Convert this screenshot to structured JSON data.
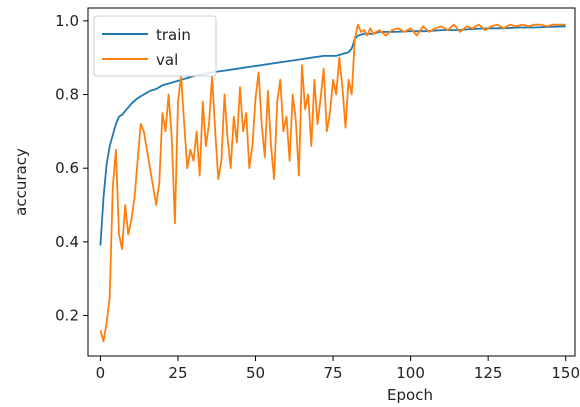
{
  "chart_data": {
    "type": "line",
    "xlabel": "Epoch",
    "ylabel": "accuracy",
    "xlim": [
      -4,
      153
    ],
    "ylim": [
      0.09,
      1.035
    ],
    "xticks": [
      0,
      25,
      50,
      75,
      100,
      125,
      150
    ],
    "yticks": [
      0.2,
      0.4,
      0.6,
      0.8,
      1.0
    ],
    "xtick_labels": [
      "0",
      "25",
      "50",
      "75",
      "100",
      "125",
      "150"
    ],
    "ytick_labels": [
      "0.2",
      "0.4",
      "0.6",
      "0.8",
      "1.0"
    ],
    "grid": false,
    "legend": "top-left",
    "series": [
      {
        "name": "train",
        "color": "#1f77b4",
        "x": [
          0,
          1,
          2,
          3,
          4,
          5,
          6,
          7,
          8,
          9,
          10,
          12,
          14,
          16,
          18,
          20,
          22,
          24,
          26,
          28,
          30,
          33,
          36,
          40,
          44,
          48,
          52,
          56,
          60,
          64,
          68,
          72,
          76,
          78,
          80,
          81,
          82,
          83,
          85,
          88,
          90,
          95,
          100,
          105,
          110,
          115,
          120,
          125,
          130,
          135,
          140,
          145,
          150
        ],
        "y": [
          0.39,
          0.52,
          0.61,
          0.66,
          0.69,
          0.72,
          0.74,
          0.745,
          0.755,
          0.765,
          0.775,
          0.79,
          0.8,
          0.81,
          0.815,
          0.825,
          0.83,
          0.835,
          0.84,
          0.845,
          0.85,
          0.855,
          0.86,
          0.865,
          0.87,
          0.875,
          0.88,
          0.885,
          0.89,
          0.895,
          0.9,
          0.905,
          0.905,
          0.91,
          0.915,
          0.925,
          0.95,
          0.96,
          0.965,
          0.965,
          0.97,
          0.97,
          0.972,
          0.972,
          0.975,
          0.975,
          0.978,
          0.98,
          0.98,
          0.982,
          0.982,
          0.984,
          0.985
        ]
      },
      {
        "name": "val",
        "color": "#ff7f0e",
        "x": [
          0,
          1,
          2,
          3,
          4,
          5,
          6,
          7,
          8,
          9,
          10,
          11,
          12,
          13,
          14,
          15,
          16,
          17,
          18,
          19,
          20,
          21,
          22,
          23,
          24,
          25,
          26,
          27,
          28,
          29,
          30,
          31,
          32,
          33,
          34,
          35,
          36,
          37,
          38,
          39,
          40,
          41,
          42,
          43,
          44,
          45,
          46,
          47,
          48,
          49,
          50,
          51,
          52,
          53,
          54,
          55,
          56,
          57,
          58,
          59,
          60,
          61,
          62,
          63,
          64,
          65,
          66,
          67,
          68,
          69,
          70,
          71,
          72,
          73,
          74,
          75,
          76,
          77,
          78,
          79,
          80,
          81,
          82,
          83,
          84,
          85,
          86,
          87,
          88,
          89,
          90,
          92,
          94,
          96,
          98,
          100,
          102,
          104,
          106,
          108,
          110,
          112,
          114,
          116,
          118,
          120,
          122,
          124,
          126,
          128,
          130,
          132,
          134,
          136,
          138,
          140,
          142,
          144,
          146,
          148,
          150
        ],
        "y": [
          0.16,
          0.13,
          0.18,
          0.25,
          0.55,
          0.65,
          0.42,
          0.38,
          0.5,
          0.42,
          0.46,
          0.52,
          0.62,
          0.72,
          0.7,
          0.65,
          0.6,
          0.55,
          0.5,
          0.56,
          0.75,
          0.7,
          0.8,
          0.68,
          0.45,
          0.78,
          0.85,
          0.72,
          0.6,
          0.65,
          0.62,
          0.7,
          0.58,
          0.78,
          0.66,
          0.72,
          0.85,
          0.7,
          0.57,
          0.62,
          0.8,
          0.68,
          0.6,
          0.74,
          0.67,
          0.82,
          0.7,
          0.75,
          0.6,
          0.66,
          0.79,
          0.86,
          0.72,
          0.63,
          0.81,
          0.66,
          0.57,
          0.78,
          0.84,
          0.7,
          0.74,
          0.62,
          0.8,
          0.73,
          0.58,
          0.88,
          0.76,
          0.8,
          0.66,
          0.84,
          0.72,
          0.79,
          0.87,
          0.7,
          0.75,
          0.84,
          0.8,
          0.9,
          0.82,
          0.71,
          0.84,
          0.8,
          0.95,
          0.99,
          0.97,
          0.975,
          0.96,
          0.98,
          0.965,
          0.97,
          0.975,
          0.96,
          0.975,
          0.98,
          0.97,
          0.98,
          0.96,
          0.985,
          0.97,
          0.98,
          0.985,
          0.975,
          0.99,
          0.97,
          0.985,
          0.98,
          0.99,
          0.975,
          0.985,
          0.99,
          0.98,
          0.99,
          0.985,
          0.99,
          0.985,
          0.99,
          0.99,
          0.985,
          0.99,
          0.99,
          0.99
        ]
      }
    ]
  }
}
